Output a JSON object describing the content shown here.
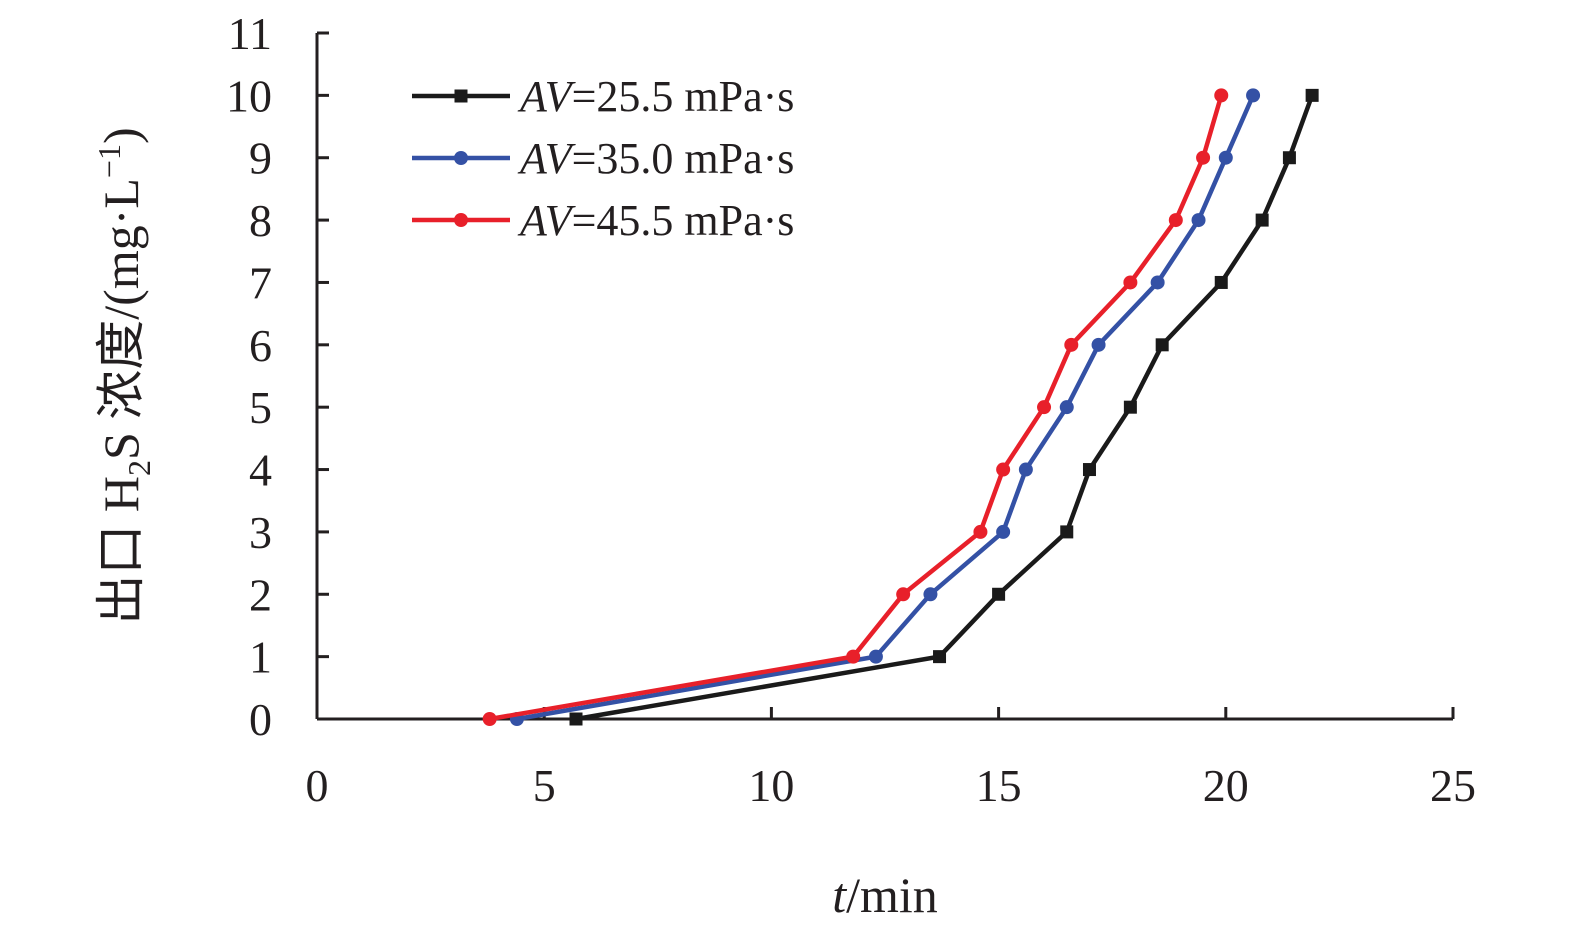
{
  "chart_data": {
    "type": "line",
    "xlabel_italic": "t",
    "xlabel_rest": "/min",
    "ylabel_prefix": "出口 H",
    "ylabel_sub": "2",
    "ylabel_suffix": "S 浓度/(mg·L",
    "ylabel_sup": "−1",
    "ylabel_close": ")",
    "xlim": [
      0,
      25
    ],
    "ylim": [
      0,
      11
    ],
    "xticks": [
      0,
      5,
      10,
      15,
      20,
      25
    ],
    "yticks": [
      0,
      1,
      2,
      3,
      4,
      5,
      6,
      7,
      8,
      9,
      10,
      11
    ],
    "grid": false,
    "legend_position": "top-left",
    "series": [
      {
        "name_italic": "AV",
        "name_rest": "=25.5 mPa·s",
        "color": "#1a1a1a",
        "marker": "square",
        "x": [
          5.7,
          13.7,
          15.0,
          16.5,
          17.0,
          17.9,
          18.6,
          19.9,
          20.8,
          21.4,
          21.9
        ],
        "y": [
          0,
          1,
          2,
          3,
          4,
          5,
          6,
          7,
          8,
          9,
          10
        ]
      },
      {
        "name_italic": "AV",
        "name_rest": "=35.0 mPa·s",
        "color": "#3451a5",
        "marker": "circle",
        "x": [
          4.4,
          12.3,
          13.5,
          15.1,
          15.6,
          16.5,
          17.2,
          18.5,
          19.4,
          20.0,
          20.6
        ],
        "y": [
          0,
          1,
          2,
          3,
          4,
          5,
          6,
          7,
          8,
          9,
          10
        ]
      },
      {
        "name_italic": "AV",
        "name_rest": "=45.5 mPa·s",
        "color": "#e8202a",
        "marker": "circle",
        "x": [
          3.8,
          11.8,
          12.9,
          14.6,
          15.1,
          16.0,
          16.6,
          17.9,
          18.9,
          19.5,
          19.9
        ],
        "y": [
          0,
          1,
          2,
          3,
          4,
          5,
          6,
          7,
          8,
          9,
          10
        ]
      }
    ]
  }
}
